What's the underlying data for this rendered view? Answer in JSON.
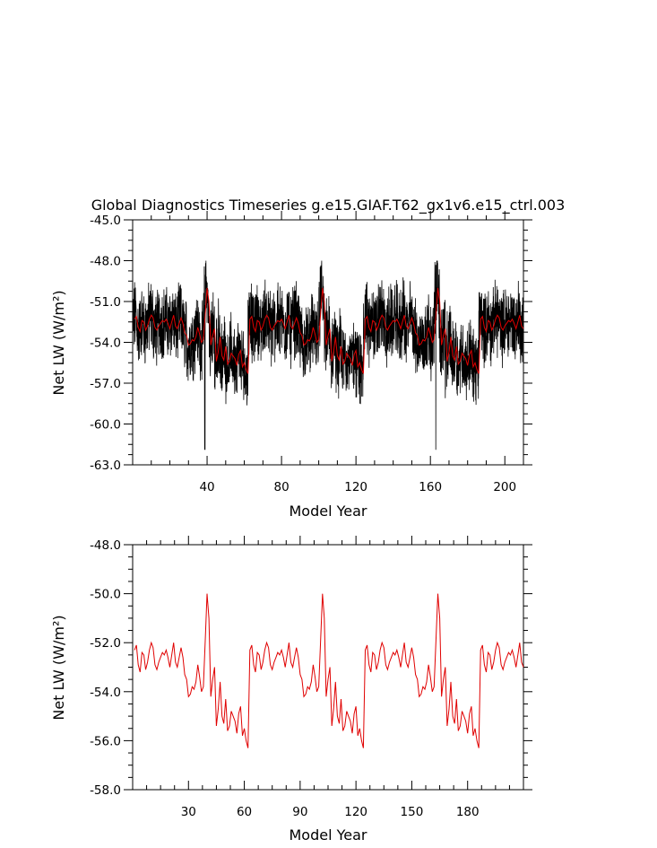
{
  "chart_data": [
    {
      "type": "line",
      "title": "Global Diagnostics Timeseries g.e15.GIAF.T62_gx1v6.e15_ctrl.003",
      "xlabel": "Model Year",
      "ylabel": "Net LW (W/m²)",
      "xlim": [
        0,
        210
      ],
      "ylim": [
        -63.0,
        -45.0
      ],
      "xticks": [
        40,
        80,
        120,
        160,
        200
      ],
      "xtick_labels": [
        "40",
        "80",
        "120",
        "160",
        "200"
      ],
      "yticks": [
        -63.0,
        -60.0,
        -57.0,
        -54.0,
        -51.0,
        -48.0,
        -45.0
      ],
      "ytick_labels": [
        "-63.0",
        "-60.0",
        "-57.0",
        "-54.0",
        "-51.0",
        "-48.0",
        "-45.0"
      ],
      "grid": false,
      "series": [
        {
          "color": "#000000",
          "sampling": "monthly",
          "note_shape": "same cycle as annual mean series, with large monthly spread (about -62 to -48)",
          "x_start": 0,
          "x_end": 210
        },
        {
          "color": "#e00000",
          "sampling": "annual",
          "x_start": 1,
          "x_end": 210
        }
      ]
    },
    {
      "type": "line",
      "xlabel": "Model Year",
      "ylabel": "Net LW (W/m²)",
      "xlim": [
        0,
        210
      ],
      "ylim": [
        -58.0,
        -48.0
      ],
      "xticks": [
        30,
        60,
        90,
        120,
        150,
        180
      ],
      "xtick_labels": [
        "30",
        "60",
        "90",
        "120",
        "150",
        "180"
      ],
      "yticks": [
        -58.0,
        -56.0,
        -54.0,
        -52.0,
        -50.0,
        -48.0
      ],
      "ytick_labels": [
        "-58.0",
        "-56.0",
        "-54.0",
        "-52.0",
        "-50.0",
        "-48.0"
      ],
      "grid": false,
      "series": [
        {
          "color": "#e00000",
          "sampling": "annual",
          "x": [
            1,
            2,
            3,
            4,
            5,
            6,
            7,
            8,
            9,
            10,
            11,
            12,
            13,
            14,
            15,
            16,
            17,
            18,
            19,
            20,
            21,
            22,
            23,
            24,
            25,
            26,
            27,
            28,
            29,
            30,
            31,
            32,
            33,
            34,
            35,
            36,
            37,
            38,
            39,
            40,
            41,
            42,
            43,
            44,
            45,
            46,
            47,
            48,
            49,
            50,
            51,
            52,
            53,
            54,
            55,
            56,
            57,
            58,
            59,
            60,
            61,
            62
          ],
          "y": [
            -52.3,
            -52.1,
            -52.9,
            -53.2,
            -52.4,
            -52.5,
            -53.1,
            -52.8,
            -52.3,
            -52.0,
            -52.2,
            -52.9,
            -53.1,
            -52.8,
            -52.6,
            -52.4,
            -52.5,
            -52.3,
            -52.6,
            -53.0,
            -52.5,
            -52.0,
            -52.8,
            -53.0,
            -52.6,
            -52.2,
            -52.6,
            -53.3,
            -53.5,
            -54.2,
            -54.1,
            -53.8,
            -53.9,
            -53.6,
            -52.9,
            -53.4,
            -54.0,
            -53.8,
            -51.9,
            -50.0,
            -51.0,
            -54.2,
            -53.5,
            -53.0,
            -55.4,
            -54.7,
            -53.6,
            -55.0,
            -55.3,
            -54.3,
            -55.6,
            -55.4,
            -54.8,
            -55.0,
            -55.2,
            -55.7,
            -54.9,
            -54.6,
            -55.8,
            -55.5,
            -56.0,
            -56.3
          ]
        }
      ]
    }
  ]
}
